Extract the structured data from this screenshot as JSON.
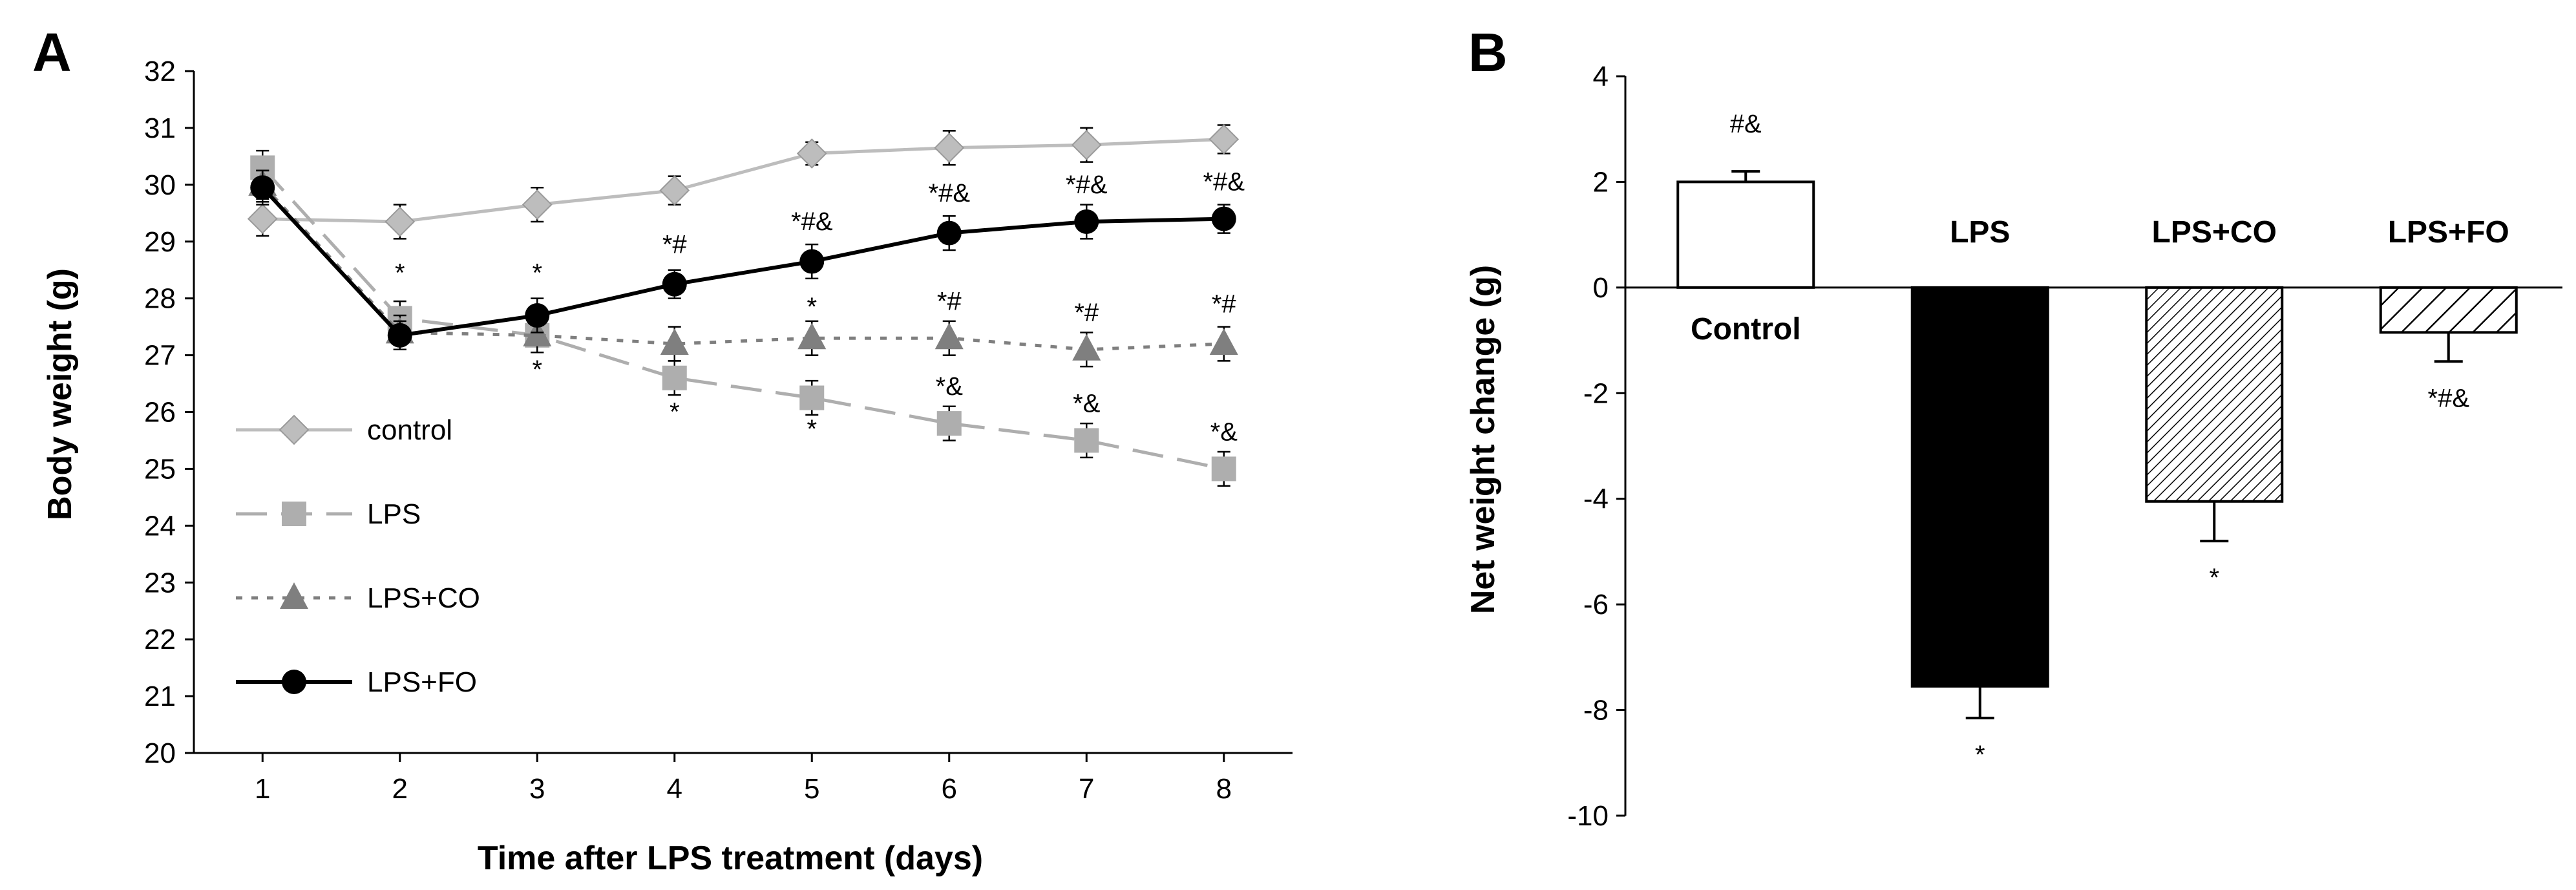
{
  "chart_data": [
    {
      "panel": "A",
      "type": "line",
      "title": "",
      "xlabel": "Time after LPS treatment (days)",
      "ylabel": "Body weight (g)",
      "x": [
        1,
        2,
        3,
        4,
        5,
        6,
        7,
        8
      ],
      "xlim": [
        0.5,
        8.5
      ],
      "ylim": [
        20,
        32
      ],
      "yticks": [
        20,
        21,
        22,
        23,
        24,
        25,
        26,
        27,
        28,
        29,
        30,
        31,
        32
      ],
      "grid": false,
      "legend_position": "lower-left",
      "series": [
        {
          "name": "control",
          "color": "#bdbdbd",
          "line": "solid",
          "marker": "diamond",
          "values": [
            29.4,
            29.35,
            29.65,
            29.9,
            30.55,
            30.65,
            30.7,
            30.8
          ],
          "errors": [
            0.3,
            0.3,
            0.3,
            0.25,
            0.2,
            0.3,
            0.3,
            0.25
          ]
        },
        {
          "name": "LPS",
          "color": "#aeaeae",
          "line": "dashed",
          "marker": "square",
          "values": [
            30.3,
            27.65,
            27.35,
            26.6,
            26.25,
            25.8,
            25.5,
            25.0
          ],
          "errors": [
            0.3,
            0.3,
            0.3,
            0.3,
            0.3,
            0.3,
            0.3,
            0.3
          ]
        },
        {
          "name": "LPS+CO",
          "color": "#7f7f7f",
          "line": "dotted",
          "marker": "triangle",
          "values": [
            30.0,
            27.4,
            27.35,
            27.2,
            27.3,
            27.3,
            27.1,
            27.2
          ],
          "errors": [
            0.25,
            0.3,
            0.3,
            0.3,
            0.3,
            0.3,
            0.3,
            0.3
          ]
        },
        {
          "name": "LPS+FO",
          "color": "#000000",
          "line": "solid",
          "marker": "circle",
          "values": [
            29.95,
            27.35,
            27.7,
            28.25,
            28.65,
            29.15,
            29.35,
            29.4
          ],
          "errors": [
            0.3,
            0.25,
            0.3,
            0.25,
            0.3,
            0.3,
            0.3,
            0.25
          ]
        }
      ],
      "annotations": [
        {
          "x": 2,
          "y": 28.3,
          "text": "*"
        },
        {
          "x": 3,
          "y": 28.3,
          "text": "*"
        },
        {
          "x": 3,
          "y": 26.6,
          "text": "*"
        },
        {
          "x": 4,
          "y": 28.8,
          "text": "*#"
        },
        {
          "x": 4,
          "y": 25.85,
          "text": "*"
        },
        {
          "x": 5,
          "y": 29.2,
          "text": "*#&"
        },
        {
          "x": 5,
          "y": 27.7,
          "text": "*"
        },
        {
          "x": 5,
          "y": 25.55,
          "text": "*"
        },
        {
          "x": 6,
          "y": 29.7,
          "text": "*#&"
        },
        {
          "x": 6,
          "y": 27.8,
          "text": "*#"
        },
        {
          "x": 6,
          "y": 26.3,
          "text": "*&"
        },
        {
          "x": 7,
          "y": 29.85,
          "text": "*#&"
        },
        {
          "x": 7,
          "y": 27.6,
          "text": "*#"
        },
        {
          "x": 7,
          "y": 26.0,
          "text": "*&"
        },
        {
          "x": 8,
          "y": 29.9,
          "text": "*#&"
        },
        {
          "x": 8,
          "y": 27.75,
          "text": "*#"
        },
        {
          "x": 8,
          "y": 25.5,
          "text": "*&"
        }
      ]
    },
    {
      "panel": "B",
      "type": "bar",
      "title": "",
      "xlabel": "",
      "ylabel": "Net weight change (g)",
      "categories": [
        "Control",
        "LPS",
        "LPS+CO",
        "LPS+FO"
      ],
      "values": [
        2.0,
        -7.55,
        -4.05,
        -0.85
      ],
      "errors": [
        0.2,
        0.6,
        0.75,
        0.55
      ],
      "fills": [
        "white",
        "black",
        "hatch-dense",
        "hatch-wide"
      ],
      "ylim": [
        -10,
        4
      ],
      "yticks": [
        -10,
        -8,
        -6,
        -4,
        -2,
        0,
        2,
        4
      ],
      "grid": false,
      "significance": [
        "#&",
        "*",
        "*",
        "*#&"
      ]
    }
  ]
}
